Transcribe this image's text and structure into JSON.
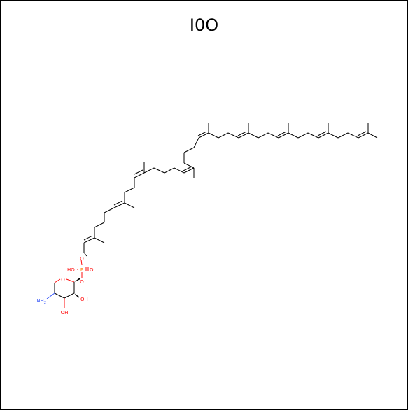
{
  "diagram": {
    "title": "I0O",
    "labels": {
      "nh2": "NH",
      "nh2_sub": "2",
      "oh_bottom": "OH",
      "oh_right": "OH",
      "ring_o": "O",
      "glyco_o": "O",
      "ho_p": "HO",
      "p": "P",
      "p_dbl_o": "O",
      "ester_o": "O"
    },
    "colors": {
      "bond": "#000000",
      "oxygen": "#ff0d0d",
      "nitrogen": "#3050f8",
      "phosphorus": "#ff8000"
    }
  }
}
